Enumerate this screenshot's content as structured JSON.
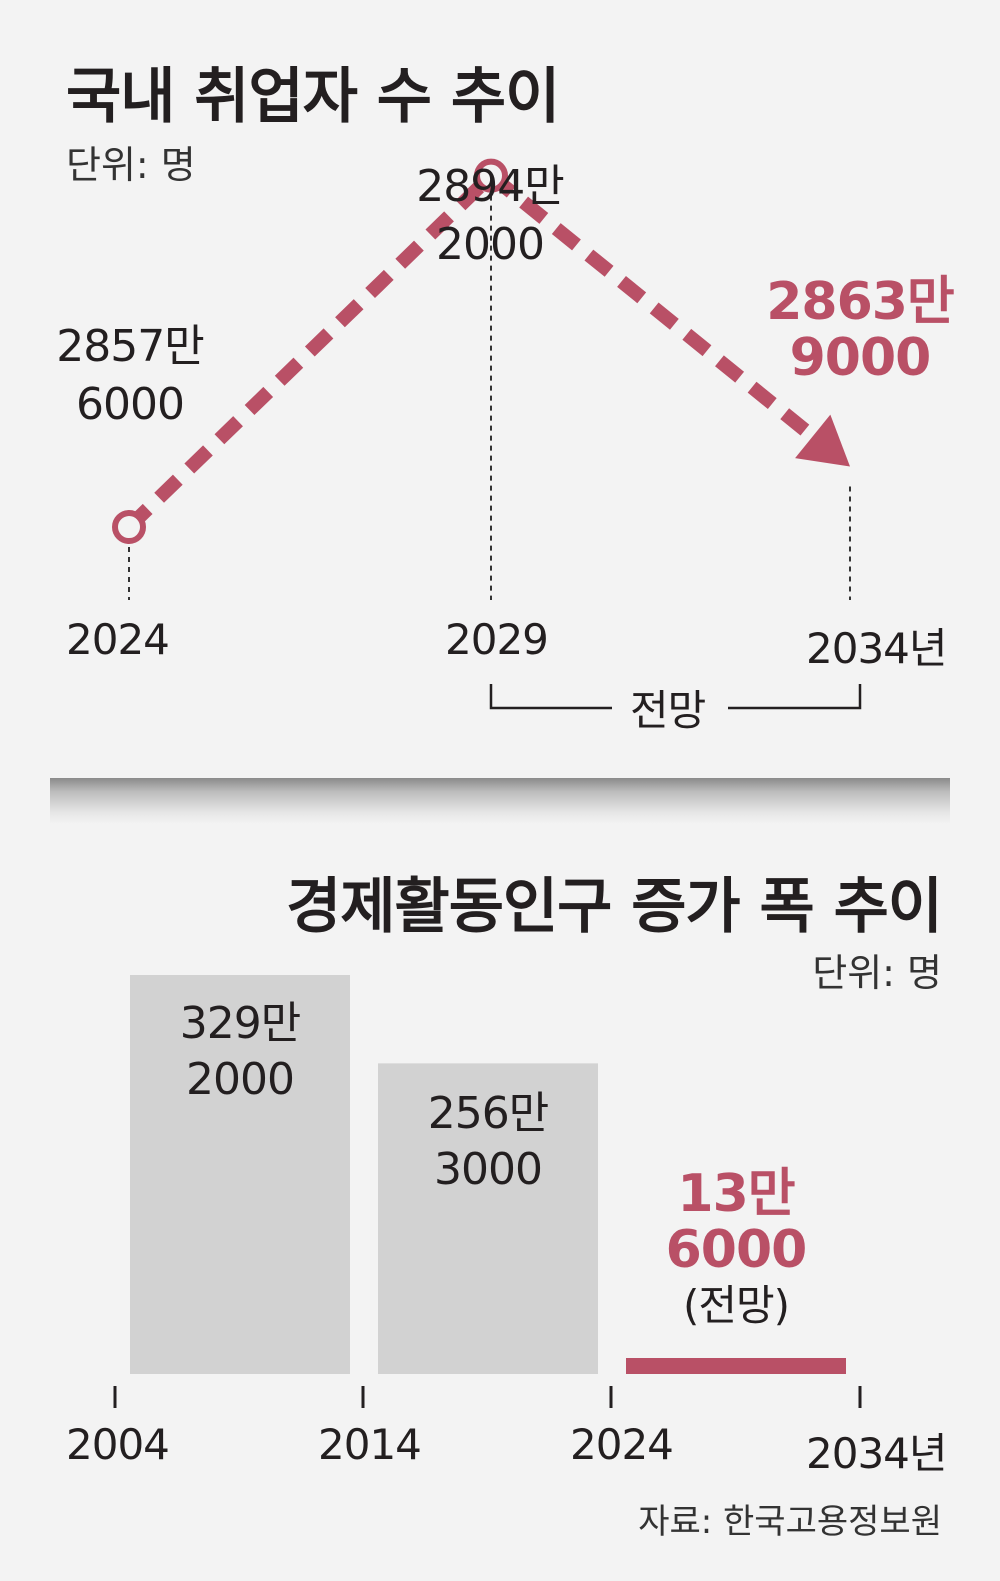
{
  "chart_data": [
    {
      "type": "line",
      "title": "국내 취업자 수 추이",
      "unit_label": "단위: 명",
      "x": [
        "2024",
        "2029",
        "2034년"
      ],
      "values": [
        28576000,
        28942000,
        28639000
      ],
      "value_labels": [
        [
          "2857만",
          "6000"
        ],
        [
          "2894만",
          "2000"
        ],
        [
          "2863만",
          "9000"
        ]
      ],
      "bracket_label": "전망",
      "ylim": [
        28500000,
        29000000
      ],
      "line_color": "#b95066"
    },
    {
      "type": "bar",
      "title": "경제활동인구 증가 폭 추이",
      "unit_label": "단위: 명",
      "x_ticks": [
        "2004",
        "2014",
        "2024",
        "2034년"
      ],
      "categories": [
        "2004-2014",
        "2014-2024",
        "2024-2034"
      ],
      "values": [
        3292000,
        2563000,
        136000
      ],
      "value_labels": [
        [
          "329만",
          "2000"
        ],
        [
          "256만",
          "3000"
        ],
        [
          "13만",
          "6000"
        ]
      ],
      "forecast_note": "(전망)",
      "bar_color": "#d2d2d2",
      "forecast_color": "#b95066"
    }
  ],
  "source": "자료: 한국고용정보원"
}
